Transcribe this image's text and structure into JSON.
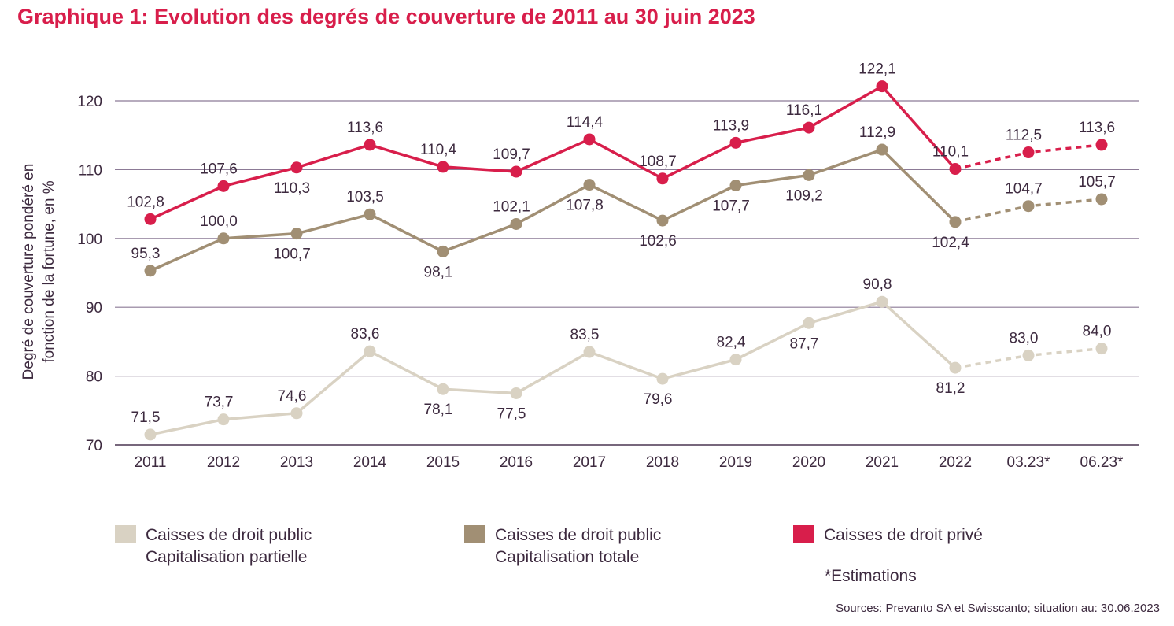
{
  "title": "Graphique 1: Evolution des degrés de couverture de 2011 au 30 juin 2023",
  "chart_data": {
    "type": "line",
    "ylabel_line1": "Degré de couverture pondéré en",
    "ylabel_line2": "fonction de la fortune, en %",
    "ylim": [
      70,
      120
    ],
    "yticks": [
      "70",
      "80",
      "90",
      "100",
      "110",
      "120"
    ],
    "grid": true,
    "categories": [
      "2011",
      "2012",
      "2013",
      "2014",
      "2015",
      "2016",
      "2017",
      "2018",
      "2019",
      "2020",
      "2021",
      "2022",
      "03.23*",
      "06.23*"
    ],
    "estimated_from_index": 11,
    "series": [
      {
        "name": "Caisses de droit privé",
        "color": "#d81e4b",
        "values": [
          102.8,
          107.6,
          110.3,
          113.6,
          110.4,
          109.7,
          114.4,
          108.7,
          113.9,
          116.1,
          122.1,
          110.1,
          112.5,
          113.6
        ],
        "labels": [
          "102,8",
          "107,6",
          "110,3",
          "113,6",
          "110,4",
          "109,7",
          "114,4",
          "108,7",
          "113,9",
          "116,1",
          "122,1",
          "110,1",
          "112,5",
          "113,6"
        ]
      },
      {
        "name": "Caisses de droit public Capitalisation totale",
        "color": "#a18f74",
        "values": [
          95.3,
          100.0,
          100.7,
          103.5,
          98.1,
          102.1,
          107.8,
          102.6,
          107.7,
          109.2,
          112.9,
          102.4,
          104.7,
          105.7
        ],
        "labels": [
          "95,3",
          "100,0",
          "100,7",
          "103,5",
          "98,1",
          "102,1",
          "107,8",
          "102,6",
          "107,7",
          "109,2",
          "112,9",
          "102,4",
          "104,7",
          "105,7"
        ]
      },
      {
        "name": "Caisses de droit public Capitalisation partielle",
        "color": "#d9d2c3",
        "values": [
          71.5,
          73.7,
          74.6,
          83.6,
          78.1,
          77.5,
          83.5,
          79.6,
          82.4,
          87.7,
          90.8,
          81.2,
          83.0,
          84.0
        ],
        "labels": [
          "71,5",
          "73,7",
          "74,6",
          "83,6",
          "78,1",
          "77,5",
          "83,5",
          "79,6",
          "82,4",
          "87,7",
          "90,8",
          "81,2",
          "83,0",
          "84,0"
        ]
      }
    ]
  },
  "legend": {
    "partielle": {
      "line1": "Caisses de droit public",
      "line2": "Capitalisation partielle",
      "color": "#d9d2c3"
    },
    "totale": {
      "line1": "Caisses de droit public",
      "line2": "Capitalisation totale",
      "color": "#a18f74"
    },
    "prive": {
      "line1": "Caisses de droit privé",
      "color": "#d81e4b"
    }
  },
  "note": "*Estimations",
  "sources": "Sources: Prevanto SA et Swisscanto; situation au: 30.06.2023"
}
